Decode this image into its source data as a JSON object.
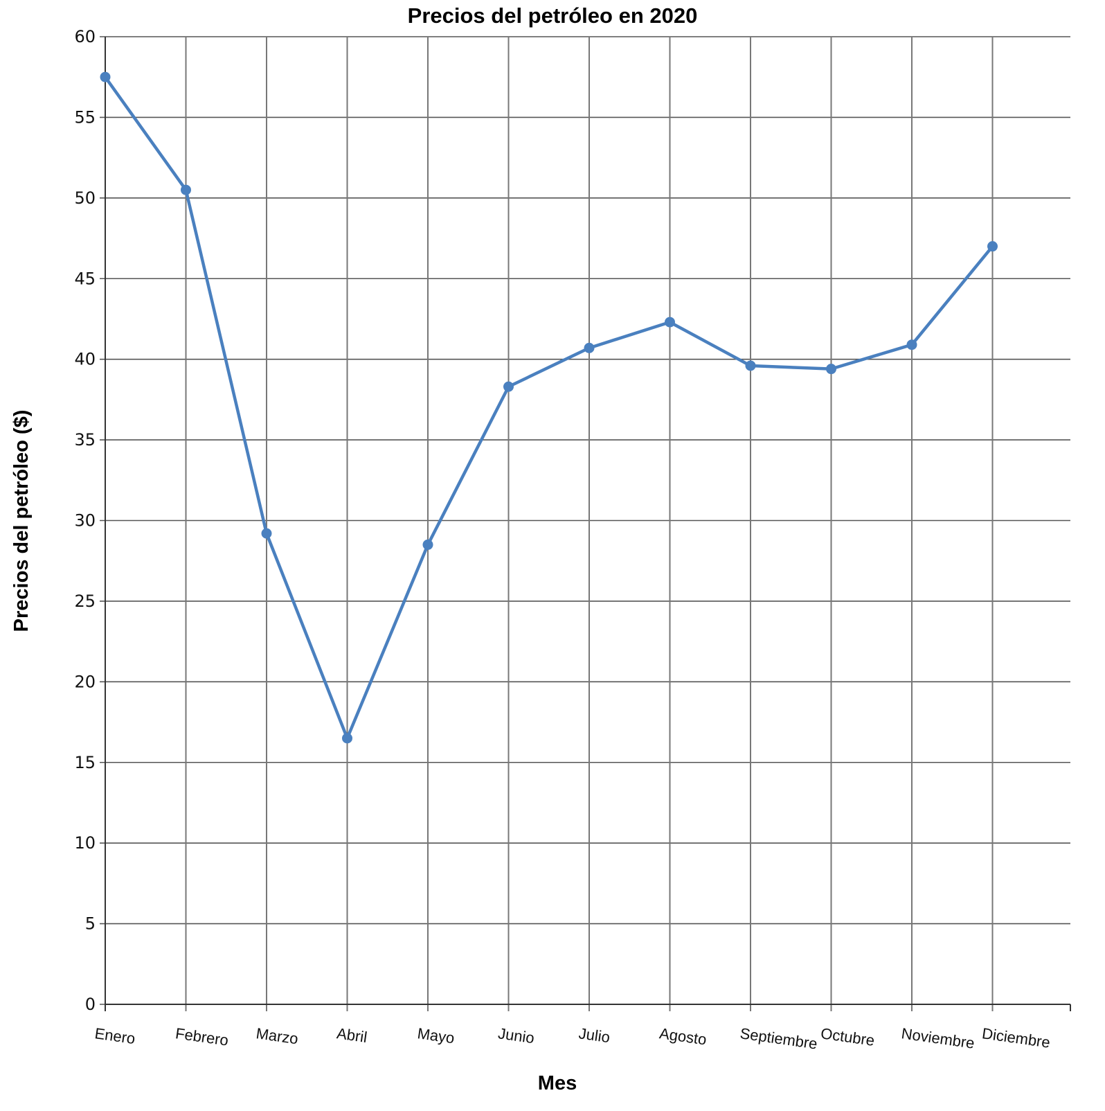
{
  "chart_data": {
    "type": "line",
    "title": "Precios del petróleo en 2020",
    "xlabel": "Mes",
    "ylabel": "Precios del petróleo ($)",
    "categories": [
      "Enero",
      "Febrero",
      "Marzo",
      "Abril",
      "Mayo",
      "Junio",
      "Julio",
      "Agosto",
      "Septiembre",
      "Octubre",
      "Noviembre",
      "Diciembre"
    ],
    "series": [
      {
        "values": [
          57.5,
          50.5,
          29.2,
          16.5,
          28.5,
          38.3,
          40.7,
          42.3,
          39.6,
          39.4,
          40.9,
          47.0
        ]
      }
    ],
    "ylim": [
      0,
      60
    ],
    "yticks": [
      0,
      5,
      10,
      15,
      20,
      25,
      30,
      35,
      40,
      45,
      50,
      55,
      60
    ],
    "grid": true,
    "line_color": "#4a80bf"
  }
}
